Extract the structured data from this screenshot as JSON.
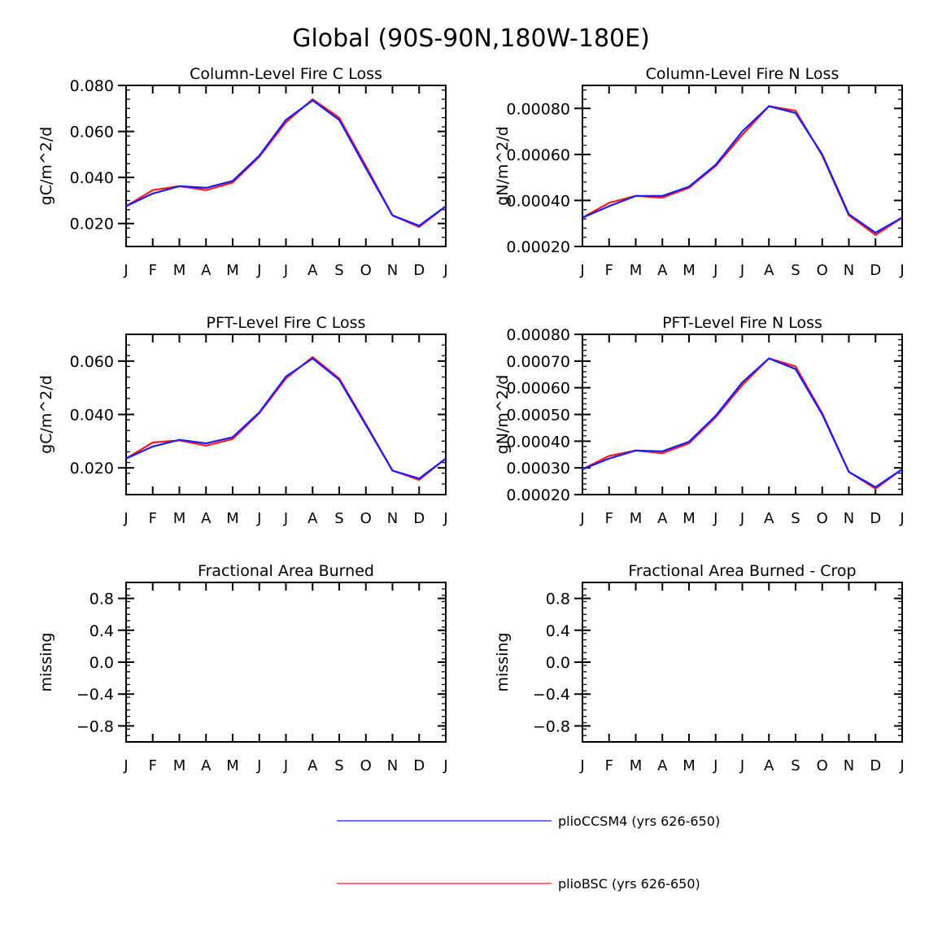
{
  "title": "Global (90S-90N,180W-180E)",
  "colors": {
    "series1": "#1a1aff",
    "series2": "#ff1a1a",
    "axis": "#000000"
  },
  "legend": [
    {
      "label": "plioCCSM4 (yrs 626-650)",
      "color": "#1a1aff"
    },
    {
      "label": "plioBSC (yrs 626-650)",
      "color": "#ff1a1a"
    }
  ],
  "chart_data": [
    {
      "type": "line",
      "title": "Column-Level Fire C Loss",
      "ylabel": "gC/m^2/d",
      "categories": [
        "J",
        "F",
        "M",
        "A",
        "M",
        "J",
        "J",
        "A",
        "S",
        "O",
        "N",
        "D",
        "J"
      ],
      "ylim": [
        0.01,
        0.08
      ],
      "yticks": [
        0.02,
        0.04,
        0.06,
        0.08
      ],
      "ytick_labels": [
        "0.020",
        "0.040",
        "0.060",
        "0.080"
      ],
      "series": [
        {
          "name": "plioCCSM4 (yrs 626-650)",
          "color": "#1a1aff",
          "values": [
            0.0275,
            0.033,
            0.0362,
            0.0355,
            0.0385,
            0.0495,
            0.065,
            0.0735,
            0.065,
            0.044,
            0.0235,
            0.019,
            0.0275
          ]
        },
        {
          "name": "plioBSC (yrs 626-650)",
          "color": "#ff1a1a",
          "values": [
            0.0275,
            0.0345,
            0.0362,
            0.0345,
            0.0378,
            0.049,
            0.064,
            0.074,
            0.066,
            0.045,
            0.0235,
            0.0185,
            0.0275
          ]
        }
      ]
    },
    {
      "type": "line",
      "title": "Column-Level Fire N Loss",
      "ylabel": "gN/m^2/d",
      "categories": [
        "J",
        "F",
        "M",
        "A",
        "M",
        "J",
        "J",
        "A",
        "S",
        "O",
        "N",
        "D",
        "J"
      ],
      "ylim": [
        0.0002,
        0.0009
      ],
      "yticks": [
        0.0002,
        0.0004,
        0.0006,
        0.0008
      ],
      "ytick_labels": [
        "0.00020",
        "0.00040",
        "0.00060",
        "0.00080"
      ],
      "series": [
        {
          "name": "plioCCSM4 (yrs 626-650)",
          "color": "#1a1aff",
          "values": [
            0.000325,
            0.000375,
            0.00042,
            0.00042,
            0.00046,
            0.000555,
            0.0007,
            0.00081,
            0.00078,
            0.0006,
            0.00034,
            0.00026,
            0.000325
          ]
        },
        {
          "name": "plioBSC (yrs 626-650)",
          "color": "#ff1a1a",
          "values": [
            0.000325,
            0.00039,
            0.00042,
            0.000412,
            0.000455,
            0.00055,
            0.000685,
            0.00081,
            0.00079,
            0.000595,
            0.000335,
            0.00025,
            0.000325
          ]
        }
      ]
    },
    {
      "type": "line",
      "title": "PFT-Level Fire C Loss",
      "ylabel": "gC/m^2/d",
      "categories": [
        "J",
        "F",
        "M",
        "A",
        "M",
        "J",
        "J",
        "A",
        "S",
        "O",
        "N",
        "D",
        "J"
      ],
      "ylim": [
        0.01,
        0.07
      ],
      "yticks": [
        0.02,
        0.04,
        0.06
      ],
      "ytick_labels": [
        "0.020",
        "0.040",
        "0.060"
      ],
      "series": [
        {
          "name": "plioCCSM4 (yrs 626-650)",
          "color": "#1a1aff",
          "values": [
            0.0235,
            0.028,
            0.0305,
            0.0292,
            0.0315,
            0.0408,
            0.0542,
            0.061,
            0.053,
            0.036,
            0.019,
            0.016,
            0.0235
          ]
        },
        {
          "name": "plioBSC (yrs 626-650)",
          "color": "#ff1a1a",
          "values": [
            0.0235,
            0.0295,
            0.0303,
            0.0283,
            0.0308,
            0.0405,
            0.0535,
            0.0615,
            0.0535,
            0.0365,
            0.019,
            0.0155,
            0.0235
          ]
        }
      ]
    },
    {
      "type": "line",
      "title": "PFT-Level Fire N Loss",
      "ylabel": "gN/m^2/d",
      "categories": [
        "J",
        "F",
        "M",
        "A",
        "M",
        "J",
        "J",
        "A",
        "S",
        "O",
        "N",
        "D",
        "J"
      ],
      "ylim": [
        0.0002,
        0.0008
      ],
      "yticks": [
        0.0002,
        0.0003,
        0.0004,
        0.0005,
        0.0006,
        0.0007,
        0.0008
      ],
      "ytick_labels": [
        "0.00020",
        "0.00030",
        "0.00040",
        "0.00050",
        "0.00060",
        "0.00070",
        "0.00080"
      ],
      "series": [
        {
          "name": "plioCCSM4 (yrs 626-650)",
          "color": "#1a1aff",
          "values": [
            0.000295,
            0.000335,
            0.000365,
            0.000362,
            0.000398,
            0.000495,
            0.00062,
            0.00071,
            0.00067,
            0.0005,
            0.000285,
            0.000228,
            0.000295
          ]
        },
        {
          "name": "plioBSC (yrs 626-650)",
          "color": "#ff1a1a",
          "values": [
            0.000295,
            0.000345,
            0.000365,
            0.000355,
            0.000392,
            0.00049,
            0.00061,
            0.00071,
            0.00068,
            0.000505,
            0.000285,
            0.000222,
            0.000295
          ]
        }
      ]
    },
    {
      "type": "line",
      "title": "Fractional Area Burned",
      "ylabel": "missing",
      "categories": [
        "J",
        "F",
        "M",
        "A",
        "M",
        "J",
        "J",
        "A",
        "S",
        "O",
        "N",
        "D",
        "J"
      ],
      "ylim": [
        -1.0,
        1.0
      ],
      "yticks": [
        -0.8,
        -0.4,
        0.0,
        0.4,
        0.8
      ],
      "ytick_labels": [
        "-0.8",
        "-0.4",
        "0.0",
        "0.4",
        "0.8"
      ],
      "series": []
    },
    {
      "type": "line",
      "title": "Fractional Area Burned - Crop",
      "ylabel": "missing",
      "categories": [
        "J",
        "F",
        "M",
        "A",
        "M",
        "J",
        "J",
        "A",
        "S",
        "O",
        "N",
        "D",
        "J"
      ],
      "ylim": [
        -1.0,
        1.0
      ],
      "yticks": [
        -0.8,
        -0.4,
        0.0,
        0.4,
        0.8
      ],
      "ytick_labels": [
        "-0.8",
        "-0.4",
        "0.0",
        "0.4",
        "0.8"
      ],
      "series": []
    }
  ]
}
